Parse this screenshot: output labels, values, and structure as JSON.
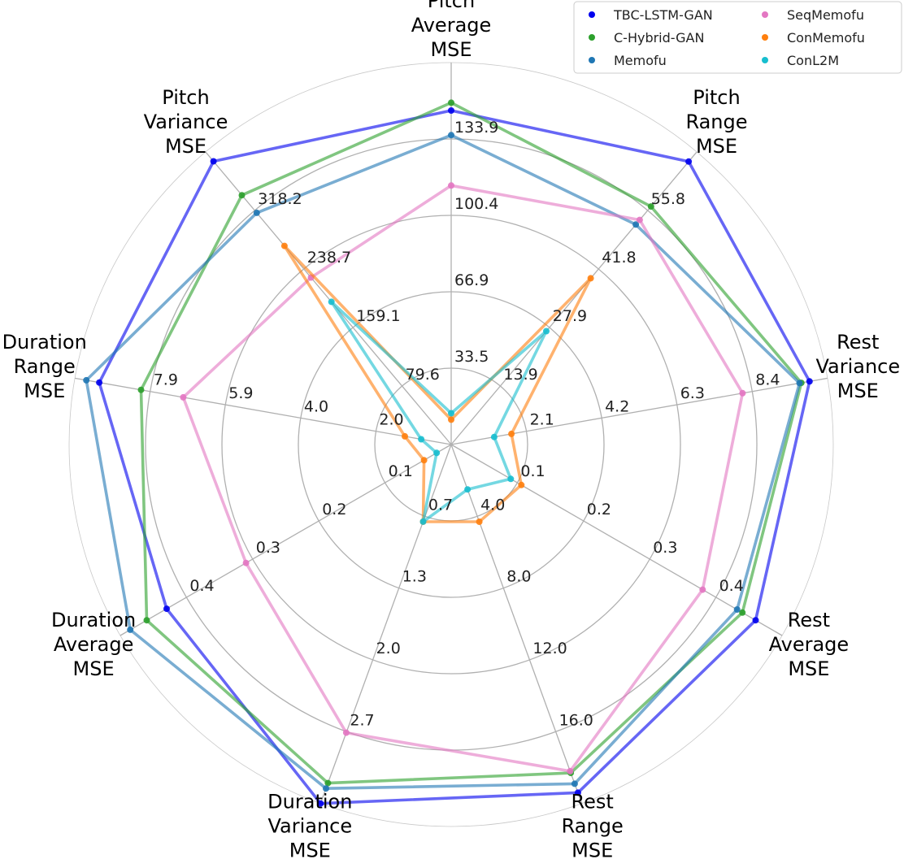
{
  "chart_data": {
    "type": "radar",
    "axes": [
      {
        "label": [
          "Pitch",
          "Average",
          "MSE"
        ],
        "ticks": [
          "33.5",
          "66.9",
          "100.4",
          "133.9"
        ],
        "max": 167.4
      },
      {
        "label": [
          "Pitch",
          "Range",
          "MSE"
        ],
        "ticks": [
          "13.9",
          "27.9",
          "41.8",
          "55.8"
        ],
        "max": 69.7
      },
      {
        "label": [
          "Rest",
          "Variance",
          "MSE"
        ],
        "ticks": [
          "2.1",
          "4.2",
          "6.3",
          "8.4"
        ],
        "max": 10.5
      },
      {
        "label": [
          "Rest",
          "Average",
          "MSE"
        ],
        "ticks": [
          "0.1",
          "0.2",
          "0.3",
          "0.4"
        ],
        "max": 0.5
      },
      {
        "label": [
          "Rest",
          "Range",
          "MSE"
        ],
        "ticks": [
          "4.0",
          "8.0",
          "12.0",
          "16.0"
        ],
        "max": 20.0
      },
      {
        "label": [
          "Duration",
          "Variance",
          "MSE"
        ],
        "ticks": [
          "0.7",
          "1.3",
          "2.0",
          "2.7"
        ],
        "max": 3.35
      },
      {
        "label": [
          "Duration",
          "Average",
          "MSE"
        ],
        "ticks": [
          "0.1",
          "0.2",
          "0.3",
          "0.4"
        ],
        "max": 0.5
      },
      {
        "label": [
          "Duration",
          "Range",
          "MSE"
        ],
        "ticks": [
          "2.0",
          "4.0",
          "5.9",
          "7.9"
        ],
        "max": 9.9
      },
      {
        "label": [
          "Pitch",
          "Variance",
          "MSE"
        ],
        "ticks": [
          "79.6",
          "159.1",
          "238.7",
          "318.2"
        ],
        "max": 397.8
      }
    ],
    "series": [
      {
        "name": "TBC-LSTM-GAN",
        "color": "#0000ee",
        "values": [
          146.4,
          67.4,
          10.0,
          0.46,
          19.4,
          3.35,
          0.43,
          9.26,
          385.0
        ]
      },
      {
        "name": "C-Hybrid-GAN",
        "color": "#2ca02c",
        "values": [
          149.8,
          56.7,
          9.77,
          0.44,
          18.3,
          3.16,
          0.46,
          8.16,
          339.0
        ]
      },
      {
        "name": "Memofu",
        "color": "#1f77b4",
        "values": [
          135.6,
          52.4,
          9.72,
          0.432,
          18.9,
          3.21,
          0.485,
          9.6,
          315.0
        ]
      },
      {
        "name": "SeqMemofu",
        "color": "#e377c2",
        "values": [
          113.5,
          53.5,
          8.13,
          0.38,
          18.2,
          2.69,
          0.31,
          7.05,
          227.0
        ]
      },
      {
        "name": "ConMemofu",
        "color": "#ff7f0e",
        "values": [
          10.9,
          39.6,
          1.68,
          0.106,
          4.3,
          0.72,
          0.041,
          1.22,
          270.0
        ]
      },
      {
        "name": "ConL2M",
        "color": "#17becf",
        "values": [
          13.7,
          27.0,
          1.2,
          0.09,
          2.5,
          0.72,
          0.022,
          0.79,
          194.0
        ]
      }
    ],
    "legend": {
      "placement": "top-right",
      "columns": 2
    },
    "grid": true
  }
}
